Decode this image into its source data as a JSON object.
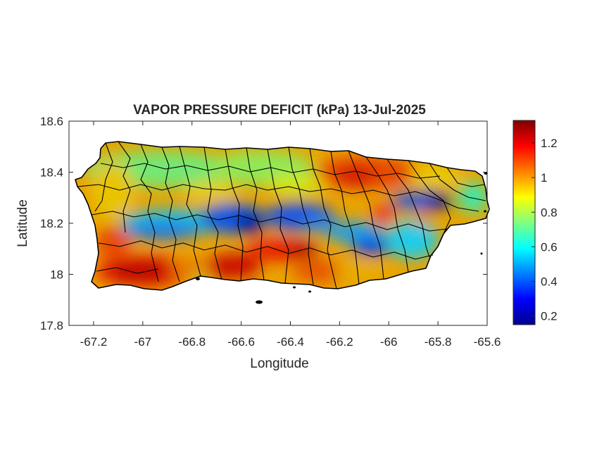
{
  "title": "VAPOR PRESSURE DEFICIT (kPa) 13-Jul-2025",
  "x_axis": {
    "label": "Longitude",
    "range": [
      -67.3,
      -65.6
    ],
    "tick_labels": [
      "-67.2",
      "-67",
      "-66.8",
      "-66.6",
      "-66.4",
      "-66.2",
      "-66",
      "-65.8",
      "-65.6"
    ],
    "tick_values": [
      -67.2,
      -67.0,
      -66.8,
      -66.6,
      -66.4,
      -66.2,
      -66.0,
      -65.8,
      -65.6
    ]
  },
  "y_axis": {
    "label": "Latitude",
    "range": [
      17.8,
      18.6
    ],
    "tick_labels": [
      "17.8",
      "18",
      "18.2",
      "18.4",
      "18.6"
    ],
    "tick_values": [
      17.8,
      18.0,
      18.2,
      18.4,
      18.6
    ]
  },
  "colorbar": {
    "colormap": "jet",
    "range": [
      0.15,
      1.33
    ],
    "tick_labels": [
      "0.2",
      "0.4",
      "0.6",
      "0.8",
      "1",
      "1.2"
    ],
    "tick_values": [
      0.2,
      0.4,
      0.6,
      0.8,
      1.0,
      1.2
    ]
  },
  "map_features": {
    "region": "Puerto Rico",
    "overlay": "municipality boundaries",
    "data_field": "vapor pressure deficit (kPa)"
  },
  "colors": {
    "boundary": "#000000",
    "axis": "#262626",
    "background": "#ffffff"
  }
}
